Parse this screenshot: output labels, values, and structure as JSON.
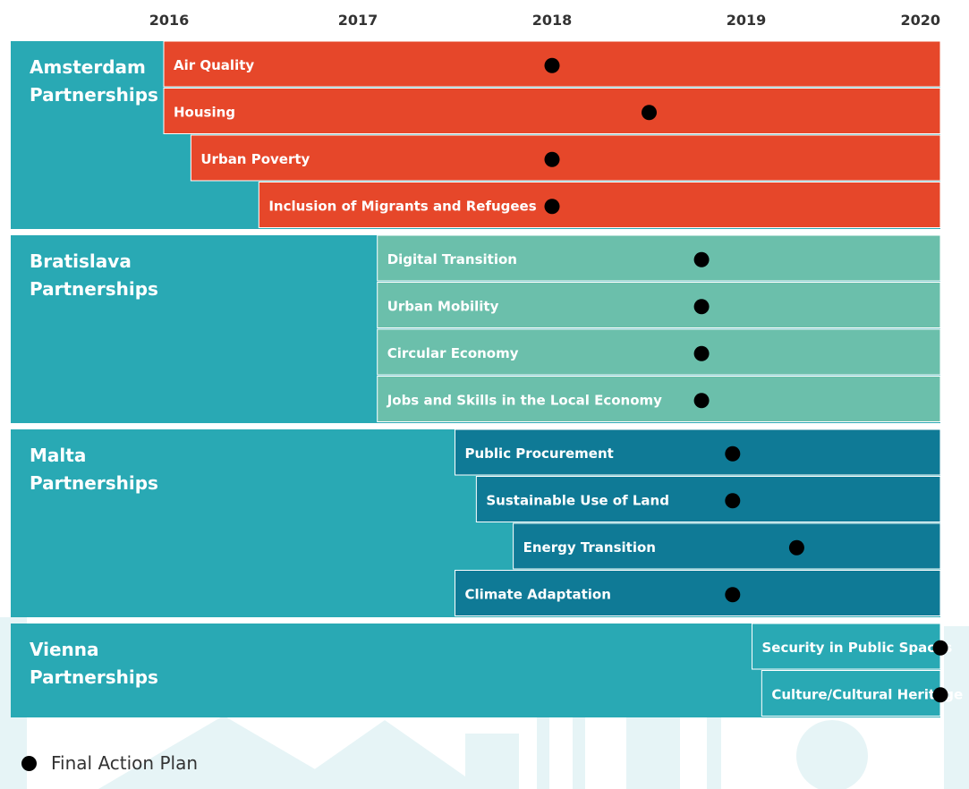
{
  "chart_data": {
    "type": "gantt",
    "x_axis": {
      "ticks": [
        "2016",
        "2017",
        "2018",
        "2019",
        "2020"
      ],
      "range": [
        2016,
        2020
      ]
    },
    "groups": [
      {
        "label": [
          "Amsterdam",
          "Partnerships"
        ],
        "start": 2016.0,
        "color": "#29a9b4",
        "bar_color": "#e6472a",
        "bars": [
          {
            "label": "Air Quality",
            "start": 2016.0,
            "end": 2020.0,
            "action_plan": 2018.0
          },
          {
            "label": "Housing",
            "start": 2016.0,
            "end": 2020.0,
            "action_plan": 2018.5
          },
          {
            "label": "Urban Poverty",
            "start": 2016.14,
            "end": 2020.0,
            "action_plan": 2018.0
          },
          {
            "label": "Inclusion of Migrants and Refugees",
            "start": 2016.49,
            "end": 2020.0,
            "action_plan": 2018.0
          }
        ]
      },
      {
        "label": [
          "Bratislava",
          "Partnerships"
        ],
        "start": 2016.0,
        "color": "#29a9b4",
        "bar_color": "#6bbfab",
        "bars": [
          {
            "label": "Digital Transition",
            "start": 2017.1,
            "end": 2020.0,
            "action_plan": 2018.77
          },
          {
            "label": "Urban Mobility",
            "start": 2017.1,
            "end": 2020.0,
            "action_plan": 2018.77
          },
          {
            "label": "Circular Economy",
            "start": 2017.1,
            "end": 2020.0,
            "action_plan": 2018.77
          },
          {
            "label": "Jobs and Skills in the Local Economy",
            "start": 2017.1,
            "end": 2020.0,
            "action_plan": 2018.77
          }
        ]
      },
      {
        "label": [
          "Malta",
          "Partnerships"
        ],
        "start": 2016.0,
        "color": "#29a9b4",
        "bar_color": "#0f7a96",
        "bars": [
          {
            "label": "Public Procurement",
            "start": 2017.5,
            "end": 2020.0,
            "action_plan": 2018.93
          },
          {
            "label": "Sustainable Use of Land",
            "start": 2017.61,
            "end": 2020.0,
            "action_plan": 2018.93
          },
          {
            "label": "Energy Transition",
            "start": 2017.8,
            "end": 2020.0,
            "action_plan": 2019.26
          },
          {
            "label": "Climate Adaptation",
            "start": 2017.5,
            "end": 2020.0,
            "action_plan": 2018.93
          }
        ]
      },
      {
        "label": [
          "Vienna",
          "Partnerships"
        ],
        "start": 2016.0,
        "color": "#29a9b4",
        "bar_color": "#29a9b4",
        "bars": [
          {
            "label": "Security in Public Spaces",
            "start": 2019.03,
            "end": 2020.0,
            "action_plan": 2020.0
          },
          {
            "label": "Culture/Cultural Heritage",
            "start": 2019.08,
            "end": 2020.0,
            "action_plan": 2020.0
          }
        ]
      }
    ],
    "legend": {
      "marker": "dot",
      "label": "Final Action Plan",
      "placement": "bottom-left"
    }
  },
  "colors": {
    "year_text": "#333333",
    "marker": "#000000",
    "label_text": "#ffffff",
    "background_skyline": "#e3f3f5"
  }
}
